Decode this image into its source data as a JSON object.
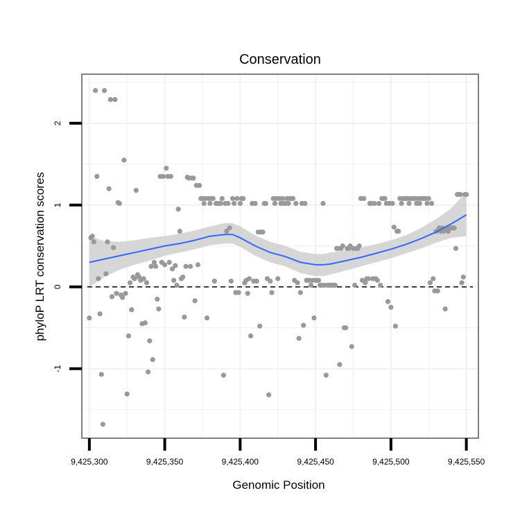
{
  "chart_data": {
    "type": "scatter",
    "title": "Conservation",
    "xlabel": "Genomic Position",
    "ylabel": "phyloP LRT conservation scores",
    "xlim": [
      9425295,
      9425558
    ],
    "ylim": [
      -1.85,
      2.6
    ],
    "x_ticks": [
      9425300,
      9425350,
      9425400,
      9425450,
      9425500,
      9425550
    ],
    "x_tick_labels": [
      "9,425,300",
      "9,425,350",
      "9,425,400",
      "9,425,450",
      "9,425,500",
      "9,425,550"
    ],
    "y_ticks": [
      -1,
      0,
      1,
      2
    ],
    "y_tick_labels": [
      "-1",
      "0",
      "1",
      "2"
    ],
    "reference_line": {
      "y": 0,
      "style": "dashed"
    },
    "colors": {
      "points": "#999999",
      "smooth_line": "#3366ff",
      "confidence_band": "#cccccc",
      "panel_border": "#7f7f7f",
      "grid": "#f2f2f2"
    },
    "points": [
      [
        9425300,
        -0.38
      ],
      [
        9425301,
        0.6
      ],
      [
        9425302,
        0.62
      ],
      [
        9425303,
        0.55
      ],
      [
        9425304,
        2.4
      ],
      [
        9425305,
        1.35
      ],
      [
        9425306,
        0.1
      ],
      [
        9425307,
        -0.33
      ],
      [
        9425308,
        -1.07
      ],
      [
        9425309,
        -1.68
      ],
      [
        9425310,
        2.4
      ],
      [
        9425311,
        0.16
      ],
      [
        9425312,
        0.55
      ],
      [
        9425313,
        1.2
      ],
      [
        9425314,
        2.29
      ],
      [
        9425315,
        -0.12
      ],
      [
        9425316,
        0.48
      ],
      [
        9425317,
        2.29
      ],
      [
        9425318,
        -0.08
      ],
      [
        9425319,
        1.03
      ],
      [
        9425320,
        1.02
      ],
      [
        9425321,
        -0.1
      ],
      [
        9425322,
        -0.13
      ],
      [
        9425323,
        1.55
      ],
      [
        9425324,
        -0.08
      ],
      [
        9425325,
        -1.31
      ],
      [
        9425326,
        -0.6
      ],
      [
        9425327,
        0.05
      ],
      [
        9425328,
        -0.28
      ],
      [
        9425329,
        0.12
      ],
      [
        9425330,
        0.1
      ],
      [
        9425331,
        1.18
      ],
      [
        9425332,
        0.15
      ],
      [
        9425333,
        0.12
      ],
      [
        9425334,
        0.08
      ],
      [
        9425335,
        -0.45
      ],
      [
        9425336,
        0.1
      ],
      [
        9425337,
        -0.44
      ],
      [
        9425338,
        0.05
      ],
      [
        9425339,
        -1.04
      ],
      [
        9425340,
        -0.66
      ],
      [
        9425341,
        0.25
      ],
      [
        9425342,
        -0.89
      ],
      [
        9425343,
        0.3
      ],
      [
        9425344,
        0.25
      ],
      [
        9425345,
        -0.15
      ],
      [
        9425346,
        -0.27
      ],
      [
        9425347,
        1.35
      ],
      [
        9425348,
        0.3
      ],
      [
        9425349,
        1.35
      ],
      [
        9425350,
        0.27
      ],
      [
        9425351,
        1.45
      ],
      [
        9425352,
        1.35
      ],
      [
        9425353,
        0.3
      ],
      [
        9425354,
        1.35
      ],
      [
        9425355,
        0.22
      ],
      [
        9425356,
        0.08
      ],
      [
        9425357,
        0.26
      ],
      [
        9425358,
        0.02
      ],
      [
        9425359,
        0.95
      ],
      [
        9425360,
        0.68
      ],
      [
        9425361,
        0.1
      ],
      [
        9425362,
        0.12
      ],
      [
        9425363,
        -0.37
      ],
      [
        9425364,
        0.25
      ],
      [
        9425365,
        1.34
      ],
      [
        9425366,
        1.33
      ],
      [
        9425367,
        0.25
      ],
      [
        9425368,
        1.33
      ],
      [
        9425369,
        1.33
      ],
      [
        9425370,
        -0.17
      ],
      [
        9425371,
        1.24
      ],
      [
        9425372,
        0.27
      ],
      [
        9425373,
        1.24
      ],
      [
        9425374,
        1.08
      ],
      [
        9425375,
        1.08
      ],
      [
        9425376,
        1.02
      ],
      [
        9425377,
        1.08
      ],
      [
        9425378,
        -0.38
      ],
      [
        9425379,
        1.08
      ],
      [
        9425380,
        1.02
      ],
      [
        9425381,
        1.08
      ],
      [
        9425382,
        1.08
      ],
      [
        9425383,
        0.07
      ],
      [
        9425384,
        1.02
      ],
      [
        9425385,
        1.02
      ],
      [
        9425386,
        1.02
      ],
      [
        9425387,
        1.02
      ],
      [
        9425388,
        1.08
      ],
      [
        9425389,
        -1.08
      ],
      [
        9425390,
        1.02
      ],
      [
        9425391,
        0.68
      ],
      [
        9425392,
        1.02
      ],
      [
        9425393,
        0.72
      ],
      [
        9425394,
        0.07
      ],
      [
        9425395,
        1.08
      ],
      [
        9425396,
        1.02
      ],
      [
        9425397,
        -0.07
      ],
      [
        9425398,
        1.08
      ],
      [
        9425399,
        -0.07
      ],
      [
        9425400,
        1.02
      ],
      [
        9425401,
        1.08
      ],
      [
        9425402,
        1.08
      ],
      [
        9425403,
        0.05
      ],
      [
        9425404,
        0.08
      ],
      [
        9425405,
        -0.08
      ],
      [
        9425406,
        0.1
      ],
      [
        9425407,
        -0.6
      ],
      [
        9425408,
        1.02
      ],
      [
        9425409,
        0.07
      ],
      [
        9425410,
        1.02
      ],
      [
        9425411,
        0.07
      ],
      [
        9425412,
        0.67
      ],
      [
        9425413,
        -0.48
      ],
      [
        9425414,
        0.67
      ],
      [
        9425415,
        0.67
      ],
      [
        9425416,
        1.02
      ],
      [
        9425417,
        1.02
      ],
      [
        9425418,
        0.1
      ],
      [
        9425419,
        -1.32
      ],
      [
        9425420,
        0.07
      ],
      [
        9425421,
        -0.07
      ],
      [
        9425422,
        1.08
      ],
      [
        9425423,
        1.02
      ],
      [
        9425424,
        1.08
      ],
      [
        9425425,
        0.1
      ],
      [
        9425426,
        1.08
      ],
      [
        9425427,
        1.02
      ],
      [
        9425428,
        1.08
      ],
      [
        9425429,
        1.02
      ],
      [
        9425430,
        1.02
      ],
      [
        9425431,
        1.08
      ],
      [
        9425432,
        1.02
      ],
      [
        9425433,
        1.08
      ],
      [
        9425434,
        1.08
      ],
      [
        9425435,
        1.08
      ],
      [
        9425436,
        0.08
      ],
      [
        9425437,
        1.02
      ],
      [
        9425438,
        0.05
      ],
      [
        9425439,
        -0.63
      ],
      [
        9425440,
        -0.07
      ],
      [
        9425441,
        1.02
      ],
      [
        9425442,
        -0.47
      ],
      [
        9425443,
        1.02
      ],
      [
        9425444,
        0.08
      ],
      [
        9425445,
        0.08
      ],
      [
        9425446,
        0.08
      ],
      [
        9425447,
        0.02
      ],
      [
        9425448,
        0.08
      ],
      [
        9425449,
        -0.38
      ],
      [
        9425450,
        0.08
      ],
      [
        9425451,
        0.08
      ],
      [
        9425452,
        0.08
      ],
      [
        9425453,
        0.02
      ],
      [
        9425454,
        0.02
      ],
      [
        9425455,
        1.02
      ],
      [
        9425456,
        0.02
      ],
      [
        9425457,
        -1.08
      ],
      [
        9425458,
        0.02
      ],
      [
        9425459,
        0.02
      ],
      [
        9425460,
        0.02
      ],
      [
        9425461,
        0.02
      ],
      [
        9425462,
        0.02
      ],
      [
        9425463,
        0.02
      ],
      [
        9425464,
        0.47
      ],
      [
        9425465,
        0.47
      ],
      [
        9425466,
        -0.95
      ],
      [
        9425467,
        0.47
      ],
      [
        9425468,
        0.5
      ],
      [
        9425469,
        -0.5
      ],
      [
        9425470,
        -0.5
      ],
      [
        9425471,
        0.47
      ],
      [
        9425472,
        0.47
      ],
      [
        9425473,
        0.5
      ],
      [
        9425474,
        -0.73
      ],
      [
        9425475,
        0.47
      ],
      [
        9425476,
        0.02
      ],
      [
        9425477,
        0.47
      ],
      [
        9425478,
        0.47
      ],
      [
        9425479,
        0.5
      ],
      [
        9425480,
        1.08
      ],
      [
        9425481,
        0.08
      ],
      [
        9425482,
        1.08
      ],
      [
        9425483,
        0.05
      ],
      [
        9425484,
        0.1
      ],
      [
        9425485,
        0.1
      ],
      [
        9425486,
        1.02
      ],
      [
        9425487,
        1.02
      ],
      [
        9425488,
        0.1
      ],
      [
        9425489,
        1.02
      ],
      [
        9425490,
        0.1
      ],
      [
        9425491,
        0.08
      ],
      [
        9425492,
        1.02
      ],
      [
        9425493,
        0.02
      ],
      [
        9425494,
        1.08
      ],
      [
        9425495,
        1.08
      ],
      [
        9425496,
        1.08
      ],
      [
        9425497,
        1.02
      ],
      [
        9425498,
        -0.18
      ],
      [
        9425499,
        1.02
      ],
      [
        9425500,
        -0.25
      ],
      [
        9425501,
        1.02
      ],
      [
        9425502,
        0.73
      ],
      [
        9425503,
        -0.48
      ],
      [
        9425504,
        0.68
      ],
      [
        9425505,
        0.68
      ],
      [
        9425506,
        1.08
      ],
      [
        9425507,
        1.02
      ],
      [
        9425508,
        1.08
      ],
      [
        9425509,
        1.08
      ],
      [
        9425510,
        1.08
      ],
      [
        9425511,
        1.08
      ],
      [
        9425512,
        1.02
      ],
      [
        9425513,
        1.08
      ],
      [
        9425514,
        1.08
      ],
      [
        9425515,
        1.08
      ],
      [
        9425516,
        1.08
      ],
      [
        9425517,
        1.02
      ],
      [
        9425518,
        1.08
      ],
      [
        9425519,
        1.02
      ],
      [
        9425520,
        1.08
      ],
      [
        9425521,
        1.08
      ],
      [
        9425522,
        1.08
      ],
      [
        9425523,
        1.08
      ],
      [
        9425524,
        1.02
      ],
      [
        9425525,
        1.08
      ],
      [
        9425526,
        0.05
      ],
      [
        9425527,
        1.02
      ],
      [
        9425528,
        0.1
      ],
      [
        9425529,
        -0.05
      ],
      [
        9425530,
        0.68
      ],
      [
        9425531,
        -0.05
      ],
      [
        9425532,
        0.72
      ],
      [
        9425533,
        0.68
      ],
      [
        9425534,
        0.72
      ],
      [
        9425535,
        0.68
      ],
      [
        9425536,
        -0.27
      ],
      [
        9425537,
        0.72
      ],
      [
        9425538,
        0.68
      ],
      [
        9425539,
        0.72
      ],
      [
        9425540,
        0.72
      ],
      [
        9425541,
        0.72
      ],
      [
        9425542,
        0.72
      ],
      [
        9425543,
        0.47
      ],
      [
        9425544,
        1.13
      ],
      [
        9425545,
        1.13
      ],
      [
        9425546,
        1.13
      ],
      [
        9425547,
        0.05
      ],
      [
        9425548,
        0.12
      ],
      [
        9425549,
        1.13
      ],
      [
        9425550,
        1.13
      ]
    ],
    "smooth_fit": {
      "x": [
        9425300,
        9425310,
        9425320,
        9425330,
        9425340,
        9425350,
        9425360,
        9425370,
        9425380,
        9425390,
        9425395,
        9425400,
        9425410,
        9425420,
        9425430,
        9425440,
        9425450,
        9425455,
        9425460,
        9425470,
        9425480,
        9425490,
        9425500,
        9425510,
        9425520,
        9425530,
        9425540,
        9425550
      ],
      "y": [
        0.3,
        0.34,
        0.38,
        0.42,
        0.46,
        0.5,
        0.53,
        0.57,
        0.62,
        0.64,
        0.64,
        0.6,
        0.5,
        0.42,
        0.37,
        0.3,
        0.27,
        0.27,
        0.28,
        0.32,
        0.36,
        0.41,
        0.46,
        0.52,
        0.59,
        0.67,
        0.77,
        0.88
      ],
      "lower": [
        0.0,
        0.12,
        0.21,
        0.27,
        0.32,
        0.38,
        0.42,
        0.46,
        0.51,
        0.53,
        0.53,
        0.49,
        0.38,
        0.3,
        0.25,
        0.17,
        0.13,
        0.13,
        0.15,
        0.2,
        0.25,
        0.3,
        0.35,
        0.41,
        0.47,
        0.54,
        0.6,
        0.62
      ],
      "upper": [
        0.62,
        0.56,
        0.55,
        0.57,
        0.6,
        0.62,
        0.65,
        0.69,
        0.74,
        0.78,
        0.78,
        0.74,
        0.63,
        0.55,
        0.5,
        0.43,
        0.4,
        0.4,
        0.42,
        0.45,
        0.48,
        0.52,
        0.57,
        0.63,
        0.72,
        0.83,
        0.96,
        1.16
      ]
    }
  }
}
